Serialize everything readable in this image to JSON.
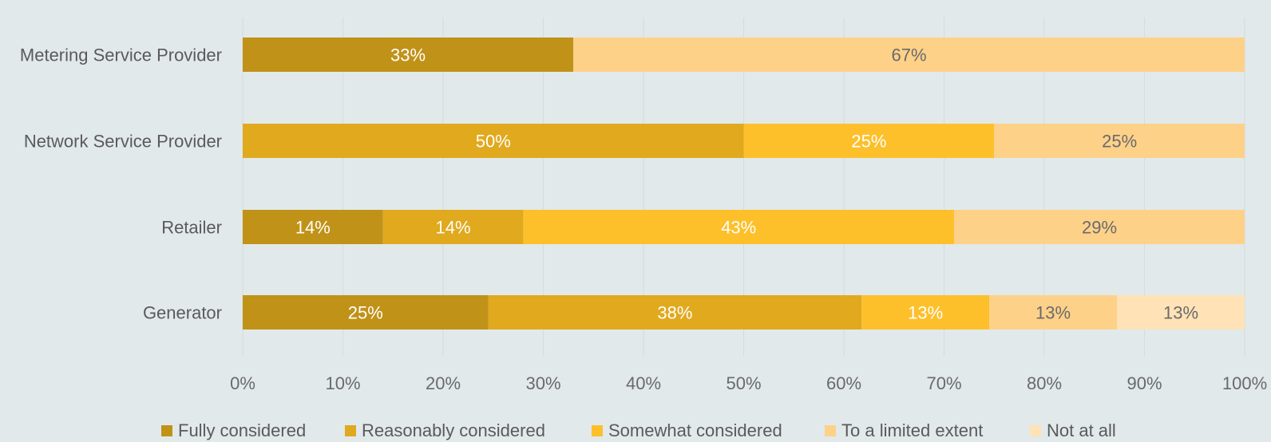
{
  "chart_data": {
    "type": "bar",
    "orientation": "horizontal",
    "stacked": true,
    "percent_stacked": true,
    "categories": [
      "Metering Service Provider",
      "Network Service Provider",
      "Retailer",
      "Generator"
    ],
    "series": [
      {
        "name": "Fully considered",
        "color": "#c09218",
        "values": [
          33,
          0,
          14,
          25
        ],
        "labels": [
          "33%",
          "",
          "14%",
          "25%"
        ],
        "label_color": "#ffffff"
      },
      {
        "name": "Reasonably considered",
        "color": "#e1a91e",
        "values": [
          0,
          50,
          14,
          38
        ],
        "labels": [
          "",
          "50%",
          "14%",
          "38%"
        ],
        "label_color": "#ffffff"
      },
      {
        "name": "Somewhat considered",
        "color": "#fdc02a",
        "values": [
          0,
          25,
          43,
          13
        ],
        "labels": [
          "",
          "25%",
          "43%",
          "13%"
        ],
        "label_color": "#ffffff"
      },
      {
        "name": "To a limited extent",
        "color": "#fed189",
        "values": [
          67,
          25,
          29,
          13
        ],
        "labels": [
          "67%",
          "25%",
          "29%",
          "13%"
        ],
        "label_color": "#6a6a6a"
      },
      {
        "name": "Not at all",
        "color": "#ffe2b6",
        "values": [
          0,
          0,
          0,
          13
        ],
        "labels": [
          "",
          "",
          "",
          "13%"
        ],
        "label_color": "#6a6a6a"
      }
    ],
    "x_ticks": [
      "0%",
      "10%",
      "20%",
      "30%",
      "40%",
      "50%",
      "60%",
      "70%",
      "80%",
      "90%",
      "100%"
    ],
    "xlim": [
      0,
      100
    ],
    "grid": true,
    "legend_position": "bottom",
    "title": "",
    "xlabel": "",
    "ylabel": ""
  }
}
